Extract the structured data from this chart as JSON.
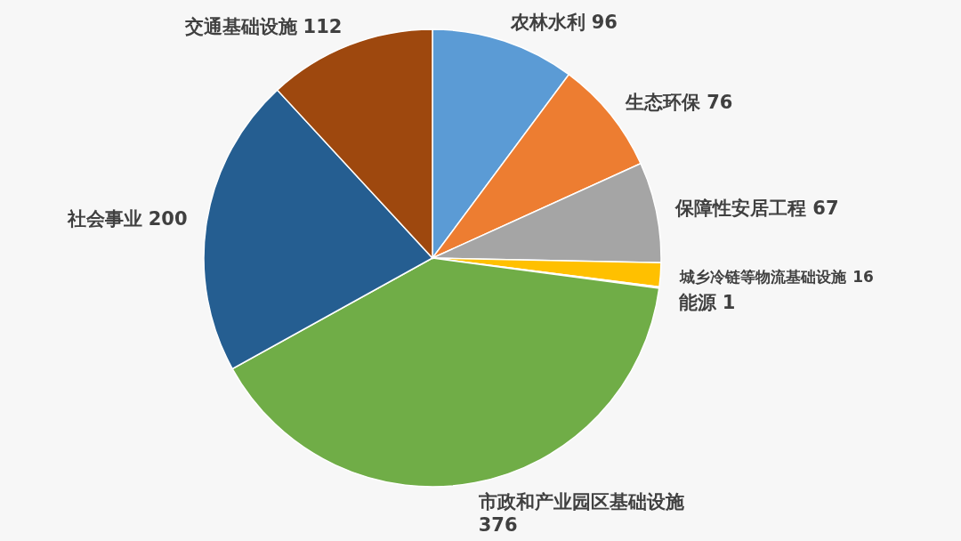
{
  "chart_data": {
    "type": "pie",
    "categories": [
      "农林水利",
      "生态环保",
      "保障性安居工程",
      "城乡冷链等物流基础设施",
      "能源",
      "市政和产业园区基础设施",
      "社会事业",
      "交通基础设施"
    ],
    "values": [
      96,
      76,
      67,
      16,
      1,
      376,
      200,
      112
    ],
    "colors": [
      "#5b9bd5",
      "#ed7d31",
      "#a5a5a5",
      "#ffc000",
      "#4472c4",
      "#70ad47",
      "#255e91",
      "#9e480e"
    ],
    "data_labels": true
  }
}
